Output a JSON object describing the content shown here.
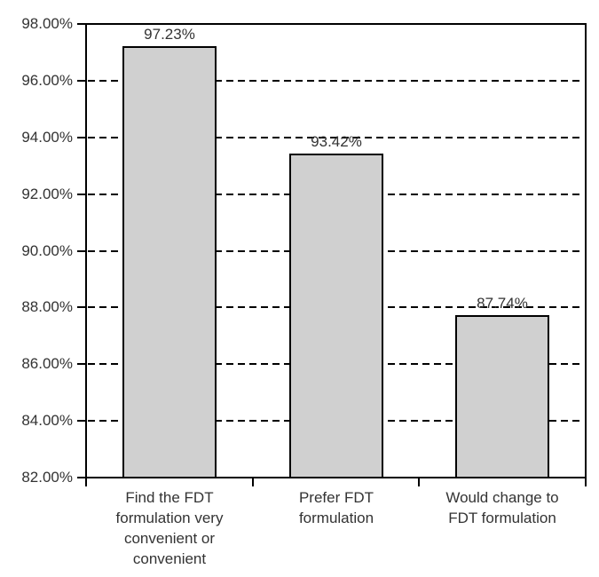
{
  "chart_data": {
    "type": "bar",
    "title": "",
    "xlabel": "",
    "ylabel": "",
    "categories": [
      "Find the FDT\nformulation very\nconvenient or\nconvenient",
      "Prefer FDT\nformulation",
      "Would change to\nFDT formulation"
    ],
    "values": [
      97.23,
      93.42,
      87.74
    ],
    "bar_value_labels": [
      "97.23%",
      "93.42%",
      "87.74%"
    ],
    "ylim": [
      82,
      98
    ],
    "y_tick_step": 2,
    "y_ticks": [
      98,
      96,
      94,
      92,
      90,
      88,
      86,
      84,
      82
    ],
    "y_tick_labels": [
      "98.00%",
      "96.00%",
      "94.00%",
      "92.00%",
      "90.00%",
      "88.00%",
      "86.00%",
      "84.00%",
      "82.00%"
    ],
    "grid": "horizontal-dashed",
    "legend": "none",
    "colors": {
      "bar_fill": "#d0d0d0",
      "bar_border": "#000000",
      "axis_line": "#000000",
      "text": "#333333",
      "background": "#ffffff"
    }
  }
}
